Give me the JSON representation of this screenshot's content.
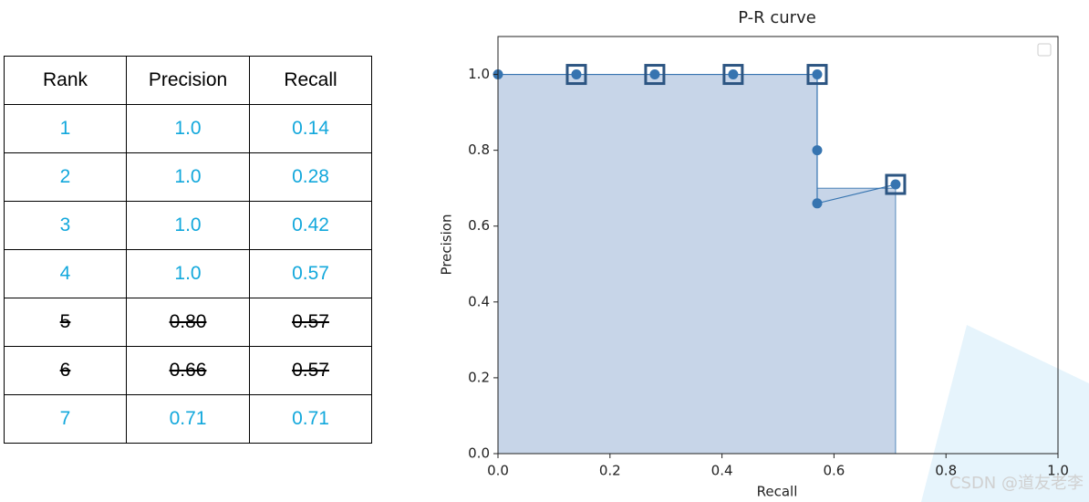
{
  "table": {
    "header": [
      "Rank",
      "Precision",
      "Recall"
    ],
    "rows": [
      {
        "cells": [
          "1",
          "1.0",
          "0.14"
        ],
        "struck": false
      },
      {
        "cells": [
          "2",
          "1.0",
          "0.28"
        ],
        "struck": false
      },
      {
        "cells": [
          "3",
          "1.0",
          "0.42"
        ],
        "struck": false
      },
      {
        "cells": [
          "4",
          "1.0",
          "0.57"
        ],
        "struck": false
      },
      {
        "cells": [
          "5",
          "0.80",
          "0.57"
        ],
        "struck": true
      },
      {
        "cells": [
          "6",
          "0.66",
          "0.57"
        ],
        "struck": true
      },
      {
        "cells": [
          "7",
          "0.71",
          "0.71"
        ],
        "struck": false
      }
    ]
  },
  "chart_data": {
    "type": "line",
    "title": "P-R curve",
    "x_label": "Recall",
    "y_label": "Precision",
    "x": [
      0,
      0.14,
      0.28,
      0.42,
      0.57,
      0.57,
      0.57,
      0.71
    ],
    "values": [
      1.0,
      1.0,
      1.0,
      1.0,
      1.0,
      0.8,
      0.66,
      0.71
    ],
    "color": "#3674b0",
    "highlight_x": [
      0.14,
      0.28,
      0.42,
      0.57,
      0.71
    ],
    "highlight_values": [
      1.0,
      1.0,
      1.0,
      1.0,
      0.71
    ],
    "highlight_color": "#2c5582",
    "area_x": [
      0,
      0.57,
      0.57,
      0.71
    ],
    "area_values": [
      1.0,
      1.0,
      0.7,
      0.7
    ],
    "area_color": "#c7d5e8",
    "xlim": [
      0,
      1
    ],
    "ylim": [
      0,
      1.1
    ],
    "xticks": [
      {
        "value": 0,
        "label": "0.0"
      },
      {
        "value": 0.2,
        "label": "0.2"
      },
      {
        "value": 0.4,
        "label": "0.4"
      },
      {
        "value": 0.6,
        "label": "0.6"
      },
      {
        "value": 0.8,
        "label": "0.8"
      },
      {
        "value": 1,
        "label": "1.0"
      }
    ],
    "yticks": [
      {
        "value": 0,
        "label": "0.0"
      },
      {
        "value": 0.2,
        "label": "0.2"
      },
      {
        "value": 0.4,
        "label": "0.4"
      },
      {
        "value": 0.6,
        "label": "0.6"
      },
      {
        "value": 0.8,
        "label": "0.8"
      },
      {
        "value": 1,
        "label": "1.0"
      }
    ],
    "grid": false,
    "legend": "upper right"
  },
  "watermark": "CSDN @道友老李"
}
